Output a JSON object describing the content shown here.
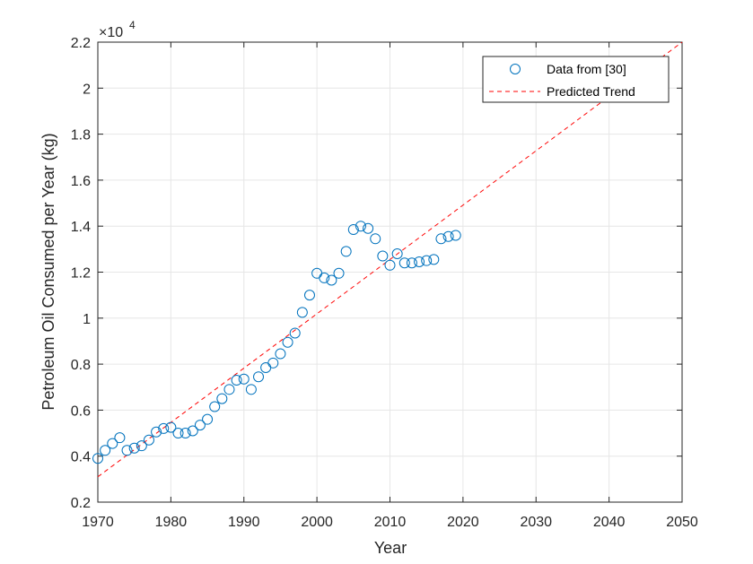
{
  "chart_data": {
    "type": "scatter",
    "xlabel": "Year",
    "ylabel": "Petroleum Oil Consumed per Year (kg)",
    "xlim": [
      1970,
      2050
    ],
    "ylim": [
      0.2,
      2.2
    ],
    "y_multiplier_label": {
      "base": "×10",
      "exponent": "4"
    },
    "x_ticks": [
      1970,
      1980,
      1990,
      2000,
      2010,
      2020,
      2030,
      2040,
      2050
    ],
    "y_ticks": [
      0.2,
      0.4,
      0.6,
      0.8,
      1.0,
      1.2,
      1.4,
      1.6,
      1.8,
      2.0,
      2.2
    ],
    "x_tick_labels": [
      "1970",
      "1980",
      "1990",
      "2000",
      "2010",
      "2020",
      "2030",
      "2040",
      "2050"
    ],
    "y_tick_labels": [
      "0.2",
      "0.4",
      "0.6",
      "0.8",
      "1",
      "1.2",
      "1.4",
      "1.6",
      "1.8",
      "2",
      "2.2"
    ],
    "grid": true,
    "legend_position": "top-right",
    "series": [
      {
        "name": "Data from [30]",
        "style": "circle-markers",
        "color": "#0072BD",
        "x": [
          1970,
          1971,
          1972,
          1973,
          1974,
          1975,
          1976,
          1977,
          1978,
          1979,
          1980,
          1981,
          1982,
          1983,
          1984,
          1985,
          1986,
          1987,
          1988,
          1989,
          1990,
          1991,
          1992,
          1993,
          1994,
          1995,
          1996,
          1997,
          1998,
          1999,
          2000,
          2001,
          2002,
          2003,
          2004,
          2005,
          2006,
          2007,
          2008,
          2009,
          2010,
          2011,
          2012,
          2013,
          2014,
          2015,
          2016,
          2017,
          2018,
          2019
        ],
        "y": [
          0.39,
          0.425,
          0.455,
          0.48,
          0.425,
          0.435,
          0.445,
          0.47,
          0.505,
          0.52,
          0.525,
          0.5,
          0.5,
          0.51,
          0.535,
          0.56,
          0.615,
          0.65,
          0.69,
          0.73,
          0.735,
          0.69,
          0.745,
          0.785,
          0.805,
          0.845,
          0.895,
          0.935,
          1.025,
          1.1,
          1.195,
          1.175,
          1.165,
          1.195,
          1.29,
          1.385,
          1.4,
          1.39,
          1.345,
          1.27,
          1.23,
          1.28,
          1.24,
          1.24,
          1.245,
          1.25,
          1.255,
          1.345,
          1.355,
          1.36
        ]
      },
      {
        "name": "Predicted Trend",
        "style": "dashed-line",
        "color": "#FF0000",
        "x": [
          1970,
          2050
        ],
        "y": [
          0.31,
          2.2
        ]
      }
    ]
  }
}
